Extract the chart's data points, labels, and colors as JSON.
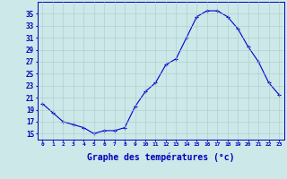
{
  "hours": [
    0,
    1,
    2,
    3,
    4,
    5,
    6,
    7,
    8,
    9,
    10,
    11,
    12,
    13,
    14,
    15,
    16,
    17,
    18,
    19,
    20,
    21,
    22,
    23
  ],
  "temperatures": [
    20.0,
    18.5,
    17.0,
    16.5,
    16.0,
    15.0,
    15.5,
    15.5,
    16.0,
    19.5,
    22.0,
    23.5,
    26.5,
    27.5,
    31.0,
    34.5,
    35.5,
    35.5,
    34.5,
    32.5,
    29.5,
    27.0,
    23.5,
    21.5
  ],
  "line_color": "#0000cc",
  "marker": "+",
  "bg_color": "#cce8e8",
  "grid_color": "#aacaca",
  "axis_color": "#0000bb",
  "ylabel_values": [
    15,
    17,
    19,
    21,
    23,
    25,
    27,
    29,
    31,
    33,
    35
  ],
  "ylim": [
    14.0,
    37.0
  ],
  "xlim": [
    -0.5,
    23.5
  ],
  "xlabel": "Graphe des températures (°c)",
  "xtick_fontsize": 4.5,
  "ytick_fontsize": 5.5,
  "xlabel_fontsize": 7.0
}
